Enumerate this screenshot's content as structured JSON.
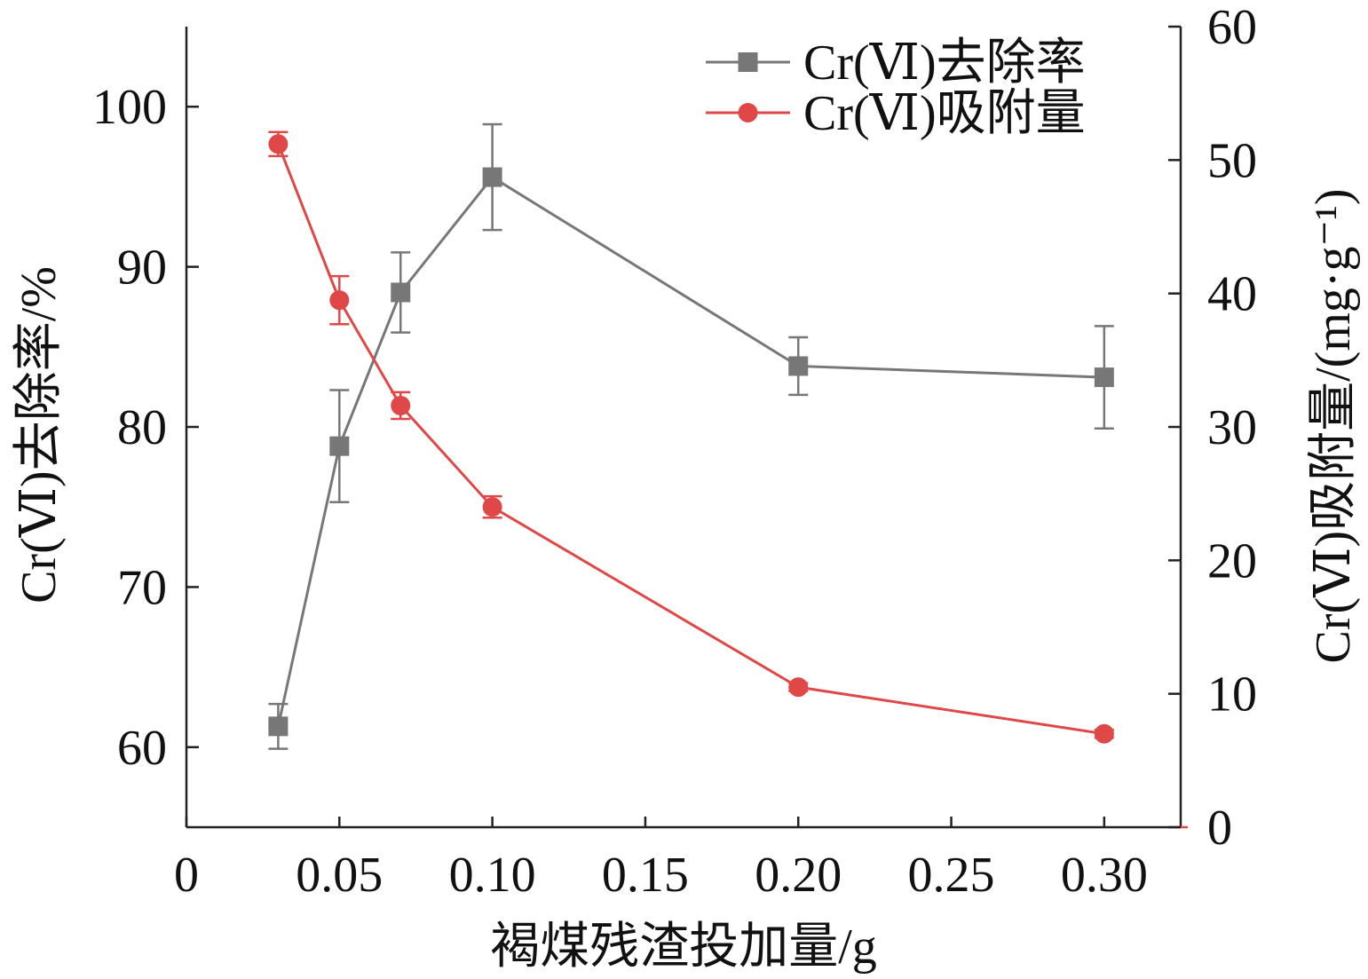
{
  "chart_data": {
    "type": "line",
    "title": "",
    "xlabel": "褐煤残渣投加量/g",
    "ylabel": "Cr(Ⅵ)去除率/%",
    "y2label": "Cr(Ⅵ)吸附量/(mg·g⁻¹)",
    "xlim": [
      0,
      0.325
    ],
    "ylim": [
      55,
      105
    ],
    "y2lim": [
      0,
      60
    ],
    "x_ticks": [
      0,
      0.05,
      0.1,
      0.15,
      0.2,
      0.25,
      0.3
    ],
    "x_tick_labels": [
      "0",
      "0.05",
      "0.10",
      "0.15",
      "0.20",
      "0.25",
      "0.30"
    ],
    "y_ticks": [
      60,
      70,
      80,
      90,
      100
    ],
    "y_tick_labels": [
      "60",
      "70",
      "80",
      "90",
      "100"
    ],
    "y2_ticks": [
      0,
      10,
      20,
      30,
      40,
      50,
      60
    ],
    "y2_tick_labels": [
      "0",
      "10",
      "20",
      "30",
      "40",
      "50",
      "60"
    ],
    "grid": false,
    "legend_position": "top-right",
    "series": [
      {
        "name": "Cr(Ⅵ)去除率",
        "axis": "left",
        "marker": "square",
        "color": "#777777",
        "x": [
          0.03,
          0.05,
          0.07,
          0.1,
          0.2,
          0.3
        ],
        "y": [
          61.3,
          78.8,
          88.4,
          95.6,
          83.8,
          83.1
        ],
        "error": [
          1.4,
          3.5,
          2.5,
          3.3,
          1.8,
          3.2
        ]
      },
      {
        "name": "Cr(Ⅵ)吸附量",
        "axis": "right",
        "marker": "circle",
        "color": "#e04848",
        "x": [
          0.03,
          0.05,
          0.07,
          0.1,
          0.2,
          0.3
        ],
        "y": [
          51.2,
          39.5,
          31.6,
          24.0,
          10.5,
          7.0
        ],
        "error": [
          0.9,
          1.8,
          1.0,
          0.8,
          0.3,
          0.3
        ]
      }
    ]
  }
}
